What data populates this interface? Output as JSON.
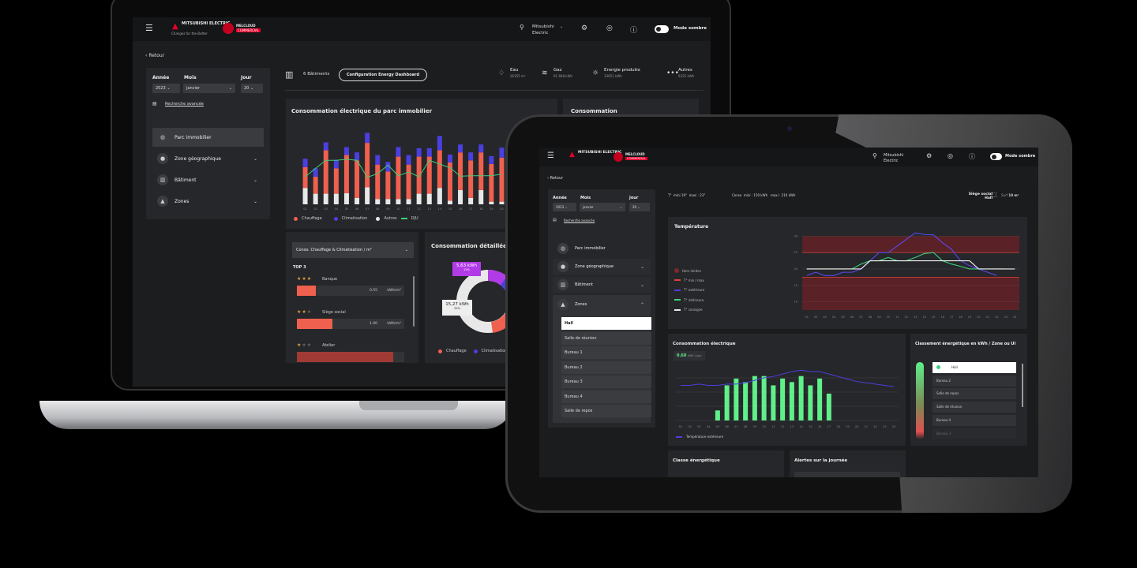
{
  "header": {
    "brand": "MITSUBISHI ELECTRIC",
    "brand_tagline": "Changes for the Better",
    "product": "MELCLOUD",
    "product_badge": "COMMERCIAL",
    "user_first": "Mitsubishi",
    "user_second": "Electric",
    "dark_mode_label": "Mode sombre",
    "dark_mode_on": true
  },
  "back_label": "Retour",
  "filters": {
    "year_label": "Année",
    "year_value": "2023",
    "month_label": "Mois",
    "month_value": "janvier",
    "day_label": "Jour",
    "day_value": "20",
    "advanced_search": "Recherche avancée"
  },
  "nav": {
    "parc": "Parc immobilier",
    "zone_geo": "Zone géographique",
    "batiment": "Bâtiment",
    "zones": "Zones"
  },
  "laptop": {
    "buildings_count": "6 Bâtiments",
    "config_button": "Configuration Energy Dashboard",
    "stats": [
      {
        "label": "Eau",
        "value": "26355 m³",
        "icon": "water-drop-icon"
      },
      {
        "label": "Gaz",
        "value": "91 848 kWh",
        "icon": "wind-icon"
      },
      {
        "label": "Energie produite",
        "value": "33651 kWh",
        "icon": "sun-icon"
      },
      {
        "label": "Autres",
        "value": "9325 kWh",
        "icon": "more-icon"
      }
    ],
    "conso_card_title": "Consommation électrique du parc immobilier",
    "conso_side_title": "Consommation",
    "ranking": {
      "select_label": "Conso. Chauffage & Climatisation / m²",
      "top_label": "TOP 3",
      "items": [
        {
          "name": "Banque",
          "stars": 3,
          "value": "0.55",
          "unit": "kWh/m²",
          "fill": 0.18
        },
        {
          "name": "Siège social",
          "stars": 2,
          "value": "1.00",
          "unit": "kWh/m²",
          "fill": 0.33
        },
        {
          "name": "Atelier",
          "stars": 1,
          "value": "",
          "unit": "",
          "fill": 0.9
        }
      ]
    },
    "detail": {
      "title": "Consommation détaillée",
      "label_a_value": "5,63 kWh",
      "label_a_pct": "15%",
      "label_b_value": "15,27 kWh",
      "label_b_pct": "35%",
      "legend": [
        "Chauffage",
        "Climatisation"
      ]
    }
  },
  "tablet": {
    "info": {
      "t_label": "T°",
      "t_min": "mini  19°",
      "t_max": "maxi : 23°",
      "conso_label": "Conso",
      "conso_min": "mini :   150 kWh",
      "conso_max": "maxi :   210 kWh",
      "site": "Siège social",
      "zone": "Hall",
      "surf_label": "Surf",
      "surf_value": "10 m²"
    },
    "zones_list": [
      "Hall",
      "Salle de réunion",
      "Bureau 1",
      "Bureau 2",
      "Bureau 3",
      "Bureau 4",
      "Salle de repos"
    ],
    "selected_zone": "Hall",
    "temp_title": "Température",
    "temp_legend": [
      "Hors limites",
      "T° min / max",
      "T° extérieure",
      "T° intérieure",
      "T° consigne"
    ],
    "elec_title": "Consommation électrique",
    "elec_kpi_value": "0.60",
    "elec_kpi_unit": "kWh / jour",
    "elec_legend": "Température extérieure",
    "ranking_title": "Classement énergétique en kWh / Zone ou UI",
    "ranking_items": [
      "Hall",
      "Bureau 2",
      "Salle de repos",
      "Salle de réunion",
      "Bureau 4",
      "Bureau 3"
    ],
    "classe_title": "Classe énergétique",
    "alertes_title": "Alertes sur la journée"
  },
  "colors": {
    "chauffage": "#f0604e",
    "climatisation": "#4b3fe0",
    "autres": "#e8e8e8",
    "dju": "#3ecf7a",
    "green": "#5ff08a",
    "accent_purple": "#b23be8",
    "brand_red": "#e4002b"
  },
  "chart_data": [
    {
      "type": "bar",
      "stacked": true,
      "title": "Consommation électrique du parc immobilier",
      "categories": [
        "01",
        "02",
        "03",
        "04",
        "05",
        "06",
        "07",
        "08",
        "09",
        "10",
        "11",
        "12",
        "13",
        "14",
        "15",
        "16",
        "17",
        "18",
        "19",
        "20"
      ],
      "series": [
        {
          "name": "Autres",
          "values": [
            31,
            20,
            20,
            20,
            21,
            12,
            32,
            10,
            10,
            10,
            10,
            20,
            20,
            31,
            7,
            27,
            12,
            27,
            5,
            5
          ]
        },
        {
          "name": "Chauffage",
          "values": [
            39,
            32,
            82,
            48,
            72,
            71,
            84,
            65,
            52,
            80,
            65,
            70,
            70,
            71,
            72,
            71,
            71,
            71,
            71,
            83
          ]
        },
        {
          "name": "Climatisation",
          "values": [
            16,
            16,
            15,
            16,
            15,
            15,
            19,
            18,
            18,
            18,
            18,
            16,
            16,
            27,
            15,
            15,
            15,
            15,
            15,
            19
          ]
        },
        {
          "name": "DJU",
          "type": "line",
          "values": [
            52,
            68,
            83,
            83,
            85,
            83,
            51,
            58,
            74,
            54,
            61,
            52,
            83,
            76,
            69,
            53,
            54,
            54,
            54,
            57
          ]
        }
      ],
      "legend": "bottom-left",
      "ylim": [
        0,
        140
      ]
    },
    {
      "type": "line",
      "title": "Température",
      "categories": [
        "01",
        "02",
        "03",
        "04",
        "05",
        "06",
        "07",
        "08",
        "09",
        "10",
        "11",
        "12",
        "13",
        "14",
        "15",
        "16",
        "17",
        "18",
        "19",
        "20",
        "21",
        "22",
        "23",
        "24"
      ],
      "y_ticks": [
        10,
        15,
        20,
        25,
        30
      ],
      "ylim": [
        7.5,
        32
      ],
      "limits": {
        "min": 17.5,
        "max": 25
      },
      "series": [
        {
          "name": "T° extérieure",
          "values": [
            18,
            19,
            18,
            18,
            19,
            19,
            20,
            22.5,
            25,
            25,
            27,
            29,
            31,
            30.5,
            30.4,
            28,
            26,
            22.5,
            21,
            20,
            19,
            18,
            null,
            null
          ]
        },
        {
          "name": "T° intérieure",
          "values": [
            20,
            20,
            20,
            20,
            20,
            20,
            21.5,
            22.5,
            22.5,
            23.5,
            22.5,
            22.5,
            23.5,
            24.7,
            25,
            22.5,
            21.5,
            20.8,
            20,
            20,
            20,
            20,
            20,
            null
          ]
        },
        {
          "name": "T° consigne",
          "values": [
            20,
            20,
            20,
            20,
            20,
            20,
            20,
            22.5,
            22.5,
            22.5,
            22.5,
            22.5,
            22.5,
            22.5,
            22.5,
            22.5,
            22.5,
            22.5,
            22.5,
            20,
            20,
            20,
            20,
            20
          ]
        }
      ],
      "legend": "left"
    },
    {
      "type": "bar",
      "title": "Consommation électrique",
      "categories": [
        "01",
        "02",
        "03",
        "04",
        "05",
        "06",
        "07",
        "08",
        "09",
        "10",
        "11",
        "12",
        "13",
        "14",
        "15",
        "16",
        "17",
        "18",
        "19",
        "20",
        "21",
        "22",
        "23",
        "24"
      ],
      "values": [
        0,
        0,
        0,
        0,
        4,
        14,
        16.7,
        15.3,
        17.7,
        17.7,
        14,
        16.7,
        15.3,
        17.7,
        14,
        16.7,
        10.7,
        0,
        0,
        0,
        0,
        0,
        0,
        0
      ],
      "ylim": [
        0,
        22
      ],
      "line_series": {
        "name": "Température extérieure",
        "values": [
          14,
          14,
          14.5,
          14,
          14,
          14.5,
          14.5,
          15,
          16,
          17,
          17.5,
          18.5,
          19.5,
          20,
          19.5,
          19.5,
          18.5,
          17.5,
          16.5,
          15.5,
          15,
          14.5,
          14,
          13.5
        ]
      },
      "legend": "bottom-left"
    }
  ]
}
